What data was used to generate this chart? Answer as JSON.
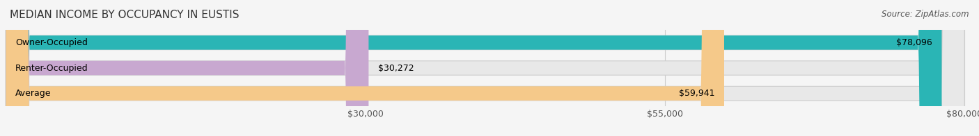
{
  "title": "MEDIAN INCOME BY OCCUPANCY IN EUSTIS",
  "source": "Source: ZipAtlas.com",
  "categories": [
    "Owner-Occupied",
    "Renter-Occupied",
    "Average"
  ],
  "values": [
    78096,
    30272,
    59941
  ],
  "bar_colors": [
    "#2ab5b5",
    "#c8a8d0",
    "#f5c98a"
  ],
  "bar_labels": [
    "$78,096",
    "$30,272",
    "$59,941"
  ],
  "xlim": [
    0,
    80000
  ],
  "xticks": [
    30000,
    55000,
    80000
  ],
  "xticklabels": [
    "$30,000",
    "$55,000",
    "$80,000"
  ],
  "bar_height": 0.55,
  "background_color": "#f5f5f5",
  "bar_bg_color": "#e8e8e8",
  "title_fontsize": 11,
  "label_fontsize": 9,
  "tick_fontsize": 9,
  "source_fontsize": 8.5
}
